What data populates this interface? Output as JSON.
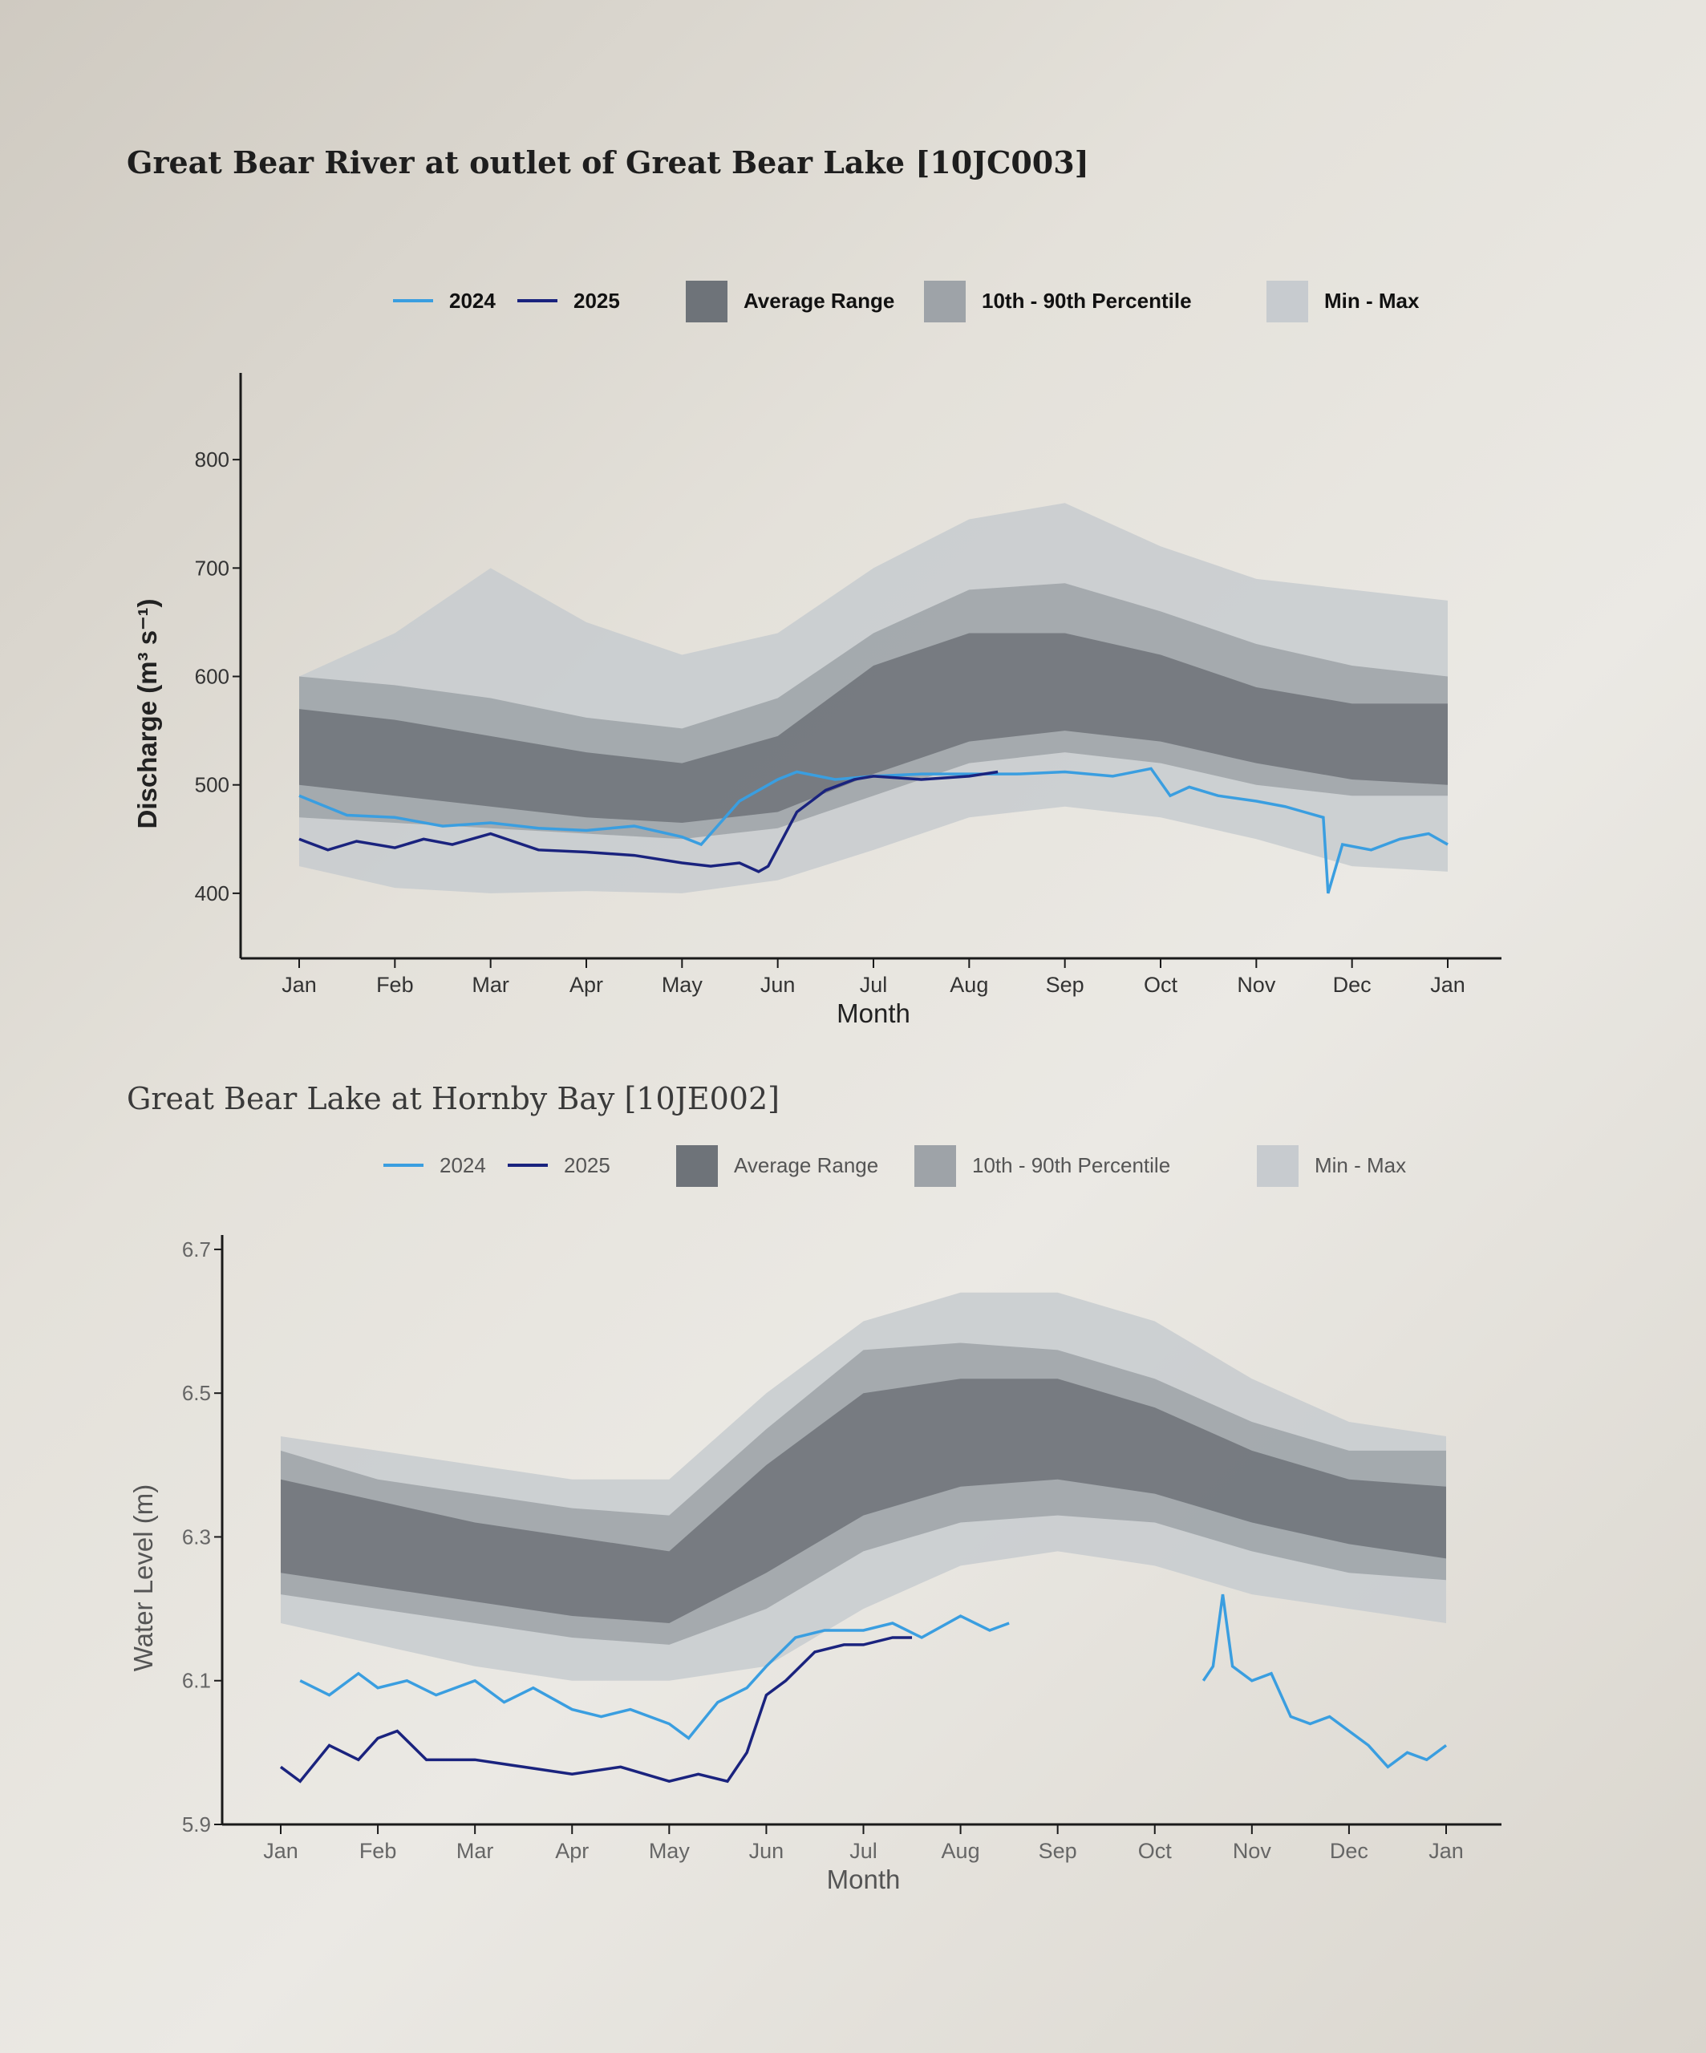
{
  "chart_data": [
    {
      "type": "area",
      "title": "Great Bear River at outlet of Great Bear Lake [10JC003]",
      "xlabel": "Month",
      "ylabel": "Discharge (m³ s⁻¹)",
      "x_tick_labels": [
        "Jan",
        "Feb",
        "Mar",
        "Apr",
        "May",
        "Jun",
        "Jul",
        "Aug",
        "Sep",
        "Oct",
        "Nov",
        "Dec",
        "Jan"
      ],
      "y_ticks": [
        400,
        500,
        600,
        700,
        800
      ],
      "ylim": [
        340,
        880
      ],
      "legend": {
        "placement": "top",
        "items": [
          "2024",
          "2025",
          "Average Range",
          "10th - 90th Percentile",
          "Min - Max"
        ]
      },
      "band_x_month": [
        0,
        1,
        2,
        3,
        4,
        5,
        6,
        7,
        8,
        9,
        10,
        11,
        12
      ],
      "bands": {
        "min_max": {
          "lower": [
            425,
            405,
            400,
            402,
            400,
            412,
            440,
            470,
            480,
            470,
            450,
            425,
            420
          ],
          "upper": [
            600,
            640,
            700,
            650,
            620,
            640,
            700,
            745,
            760,
            720,
            690,
            680,
            670
          ]
        },
        "p10_p90": {
          "lower": [
            470,
            465,
            460,
            455,
            450,
            460,
            490,
            520,
            530,
            520,
            500,
            490,
            490
          ],
          "upper": [
            600,
            592,
            580,
            562,
            552,
            580,
            640,
            680,
            686,
            660,
            630,
            610,
            600
          ]
        },
        "average": {
          "lower": [
            500,
            490,
            480,
            470,
            465,
            475,
            510,
            540,
            550,
            540,
            520,
            505,
            500
          ],
          "upper": [
            570,
            560,
            545,
            530,
            520,
            545,
            610,
            640,
            640,
            620,
            590,
            575,
            575
          ]
        }
      },
      "series": [
        {
          "name": "2024",
          "color": "#3a9ee0",
          "x": [
            0,
            0.5,
            1,
            1.5,
            2,
            2.5,
            3,
            3.5,
            4,
            4.2,
            4.6,
            5,
            5.2,
            5.6,
            6,
            6.5,
            7,
            7.5,
            8,
            8.5,
            8.9,
            9.1,
            9.3,
            9.6,
            10,
            10.3,
            10.5,
            10.7,
            10.75,
            10.9,
            11.2,
            11.5,
            11.8,
            12
          ],
          "y": [
            490,
            472,
            470,
            462,
            465,
            460,
            458,
            462,
            452,
            445,
            485,
            505,
            512,
            505,
            508,
            510,
            510,
            510,
            512,
            508,
            515,
            490,
            498,
            490,
            485,
            480,
            475,
            470,
            400,
            445,
            440,
            450,
            455,
            445
          ]
        },
        {
          "name": "2025",
          "color": "#1a237e",
          "x": [
            0,
            0.3,
            0.6,
            1,
            1.3,
            1.6,
            2,
            2.5,
            3,
            3.5,
            4,
            4.3,
            4.6,
            4.8,
            4.9,
            5.2,
            5.5,
            5.8,
            6,
            6.5,
            7,
            7.3
          ],
          "y": [
            450,
            440,
            448,
            442,
            450,
            445,
            455,
            440,
            438,
            435,
            428,
            425,
            428,
            420,
            425,
            475,
            495,
            505,
            508,
            505,
            508,
            512
          ]
        }
      ]
    },
    {
      "type": "area",
      "title": "Great Bear Lake at Hornby Bay [10JE002]",
      "xlabel": "Month",
      "ylabel": "Water Level (m)",
      "x_tick_labels": [
        "Jan",
        "Feb",
        "Mar",
        "Apr",
        "May",
        "Jun",
        "Jul",
        "Aug",
        "Sep",
        "Oct",
        "Nov",
        "Dec",
        "Jan"
      ],
      "y_ticks": [
        5.9,
        6.1,
        6.3,
        6.5,
        6.7
      ],
      "ylim": [
        5.9,
        6.72
      ],
      "legend": {
        "placement": "top",
        "items": [
          "2024",
          "2025",
          "Average Range",
          "10th - 90th Percentile",
          "Min - Max"
        ]
      },
      "band_x_month": [
        0,
        1,
        2,
        3,
        4,
        5,
        6,
        7,
        8,
        9,
        10,
        11,
        12
      ],
      "bands": {
        "min_max": {
          "lower": [
            6.18,
            6.15,
            6.12,
            6.1,
            6.1,
            6.12,
            6.2,
            6.26,
            6.28,
            6.26,
            6.22,
            6.2,
            6.18
          ],
          "upper": [
            6.44,
            6.42,
            6.4,
            6.38,
            6.38,
            6.5,
            6.6,
            6.64,
            6.64,
            6.6,
            6.52,
            6.46,
            6.44
          ]
        },
        "p10_p90": {
          "lower": [
            6.22,
            6.2,
            6.18,
            6.16,
            6.15,
            6.2,
            6.28,
            6.32,
            6.33,
            6.32,
            6.28,
            6.25,
            6.24
          ],
          "upper": [
            6.42,
            6.38,
            6.36,
            6.34,
            6.33,
            6.45,
            6.56,
            6.57,
            6.56,
            6.52,
            6.46,
            6.42,
            6.42
          ]
        },
        "average": {
          "lower": [
            6.25,
            6.23,
            6.21,
            6.19,
            6.18,
            6.25,
            6.33,
            6.37,
            6.38,
            6.36,
            6.32,
            6.29,
            6.27
          ],
          "upper": [
            6.38,
            6.35,
            6.32,
            6.3,
            6.28,
            6.4,
            6.5,
            6.52,
            6.52,
            6.48,
            6.42,
            6.38,
            6.37
          ]
        }
      },
      "series": [
        {
          "name": "2024",
          "color": "#3a9ee0",
          "segments": [
            {
              "x": [
                0.2,
                0.5,
                0.8,
                1,
                1.3,
                1.6,
                2,
                2.3,
                2.6,
                3,
                3.3,
                3.6,
                4,
                4.2,
                4.5,
                4.8,
                5,
                5.3,
                5.6,
                6,
                6.3,
                6.6,
                7,
                7.3,
                7.5
              ],
              "y": [
                6.1,
                6.08,
                6.11,
                6.09,
                6.1,
                6.08,
                6.1,
                6.07,
                6.09,
                6.06,
                6.05,
                6.06,
                6.04,
                6.02,
                6.07,
                6.09,
                6.12,
                6.16,
                6.17,
                6.17,
                6.18,
                6.16,
                6.19,
                6.17,
                6.18
              ]
            },
            {
              "x": [
                9.5,
                9.6,
                9.7,
                9.8,
                10,
                10.2,
                10.4,
                10.6,
                10.8,
                11,
                11.2,
                11.4,
                11.6,
                11.8,
                12
              ],
              "y": [
                6.1,
                6.12,
                6.22,
                6.12,
                6.1,
                6.11,
                6.05,
                6.04,
                6.05,
                6.03,
                6.01,
                5.98,
                6.0,
                5.99,
                6.01
              ]
            }
          ]
        },
        {
          "name": "2025",
          "color": "#1a237e",
          "segments": [
            {
              "x": [
                0,
                0.2,
                0.5,
                0.8,
                1,
                1.2,
                1.5,
                2,
                2.5,
                3,
                3.5,
                4,
                4.3,
                4.6,
                4.8,
                5,
                5.2,
                5.5,
                5.8,
                6,
                6.3,
                6.5
              ],
              "y": [
                5.98,
                5.96,
                6.01,
                5.99,
                6.02,
                6.03,
                5.99,
                5.99,
                5.98,
                5.97,
                5.98,
                5.96,
                5.97,
                5.96,
                6.0,
                6.08,
                6.1,
                6.14,
                6.15,
                6.15,
                6.16,
                6.16
              ]
            }
          ]
        }
      ]
    }
  ],
  "colors": {
    "average": "#6e7379",
    "p10_p90": "#9ea3a8",
    "min_max": "#c7cbcf",
    "axis": "#1a1a1a"
  }
}
